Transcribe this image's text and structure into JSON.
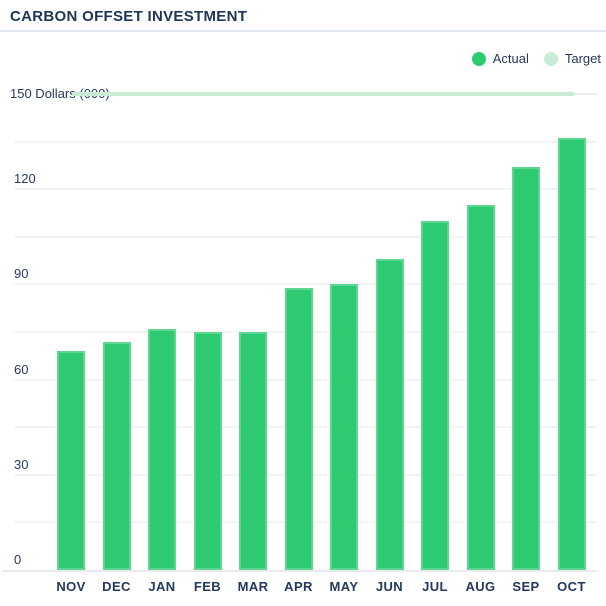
{
  "header": {
    "title": "CARBON OFFSET INVESTMENT"
  },
  "legend": {
    "items": [
      {
        "label": "Actual",
        "color": "#2dca72"
      },
      {
        "label": "Target",
        "color": "#c9ecd5"
      }
    ]
  },
  "chart_data": {
    "type": "bar",
    "title": "CARBON OFFSET INVESTMENT",
    "categories": [
      "NOV",
      "DEC",
      "JAN",
      "FEB",
      "MAR",
      "APR",
      "MAY",
      "JUN",
      "JUL",
      "AUG",
      "SEP",
      "OCT"
    ],
    "series": [
      {
        "name": "Actual",
        "values": [
          69,
          72,
          76,
          75,
          75,
          89,
          90,
          98,
          110,
          115,
          127,
          136
        ]
      }
    ],
    "target": {
      "name": "Target",
      "value": 150,
      "label": "150 Dollars (000)"
    },
    "ylabel": "Dollars (000)",
    "yticks": [
      0,
      30,
      60,
      90,
      120
    ],
    "gridlines": [
      15,
      30,
      45,
      60,
      75,
      90,
      105,
      120,
      135
    ],
    "ylim": [
      0,
      150
    ],
    "grid": true,
    "legend_position": "top-right"
  },
  "colors": {
    "bar_fill": "#2dca72",
    "bar_edge": "#5ed691",
    "target_line": "#c9ecd5",
    "gridline": "#f3f4f7",
    "axis_line": "#e8eaee",
    "text_navy": "#24395e",
    "title_navy": "#1e3557",
    "divider": "#dfe4ed",
    "background": "#ffffff"
  }
}
